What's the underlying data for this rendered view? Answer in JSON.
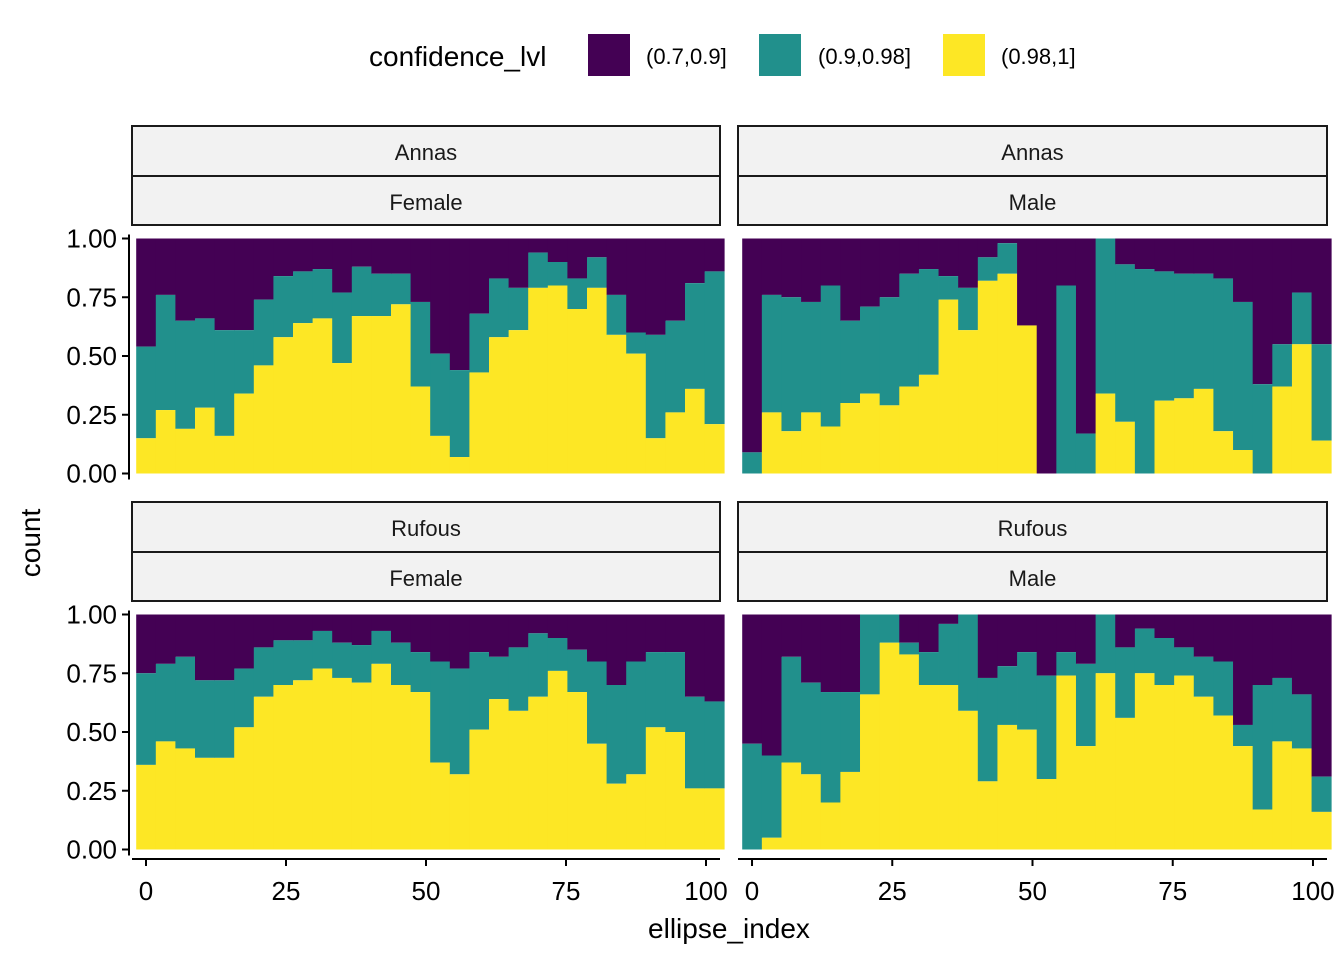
{
  "chart_data": {
    "type": "bar",
    "stacked": "fill",
    "xlabel": "ellipse_index",
    "ylabel": "count",
    "ylim": [
      0,
      1
    ],
    "xlim": [
      -2.5,
      102.5
    ],
    "bin_width": 3.5,
    "y_ticks": [
      "0.00",
      "0.25",
      "0.50",
      "0.75",
      "1.00"
    ],
    "x_ticks": [
      "0",
      "25",
      "50",
      "75",
      "100"
    ],
    "grid": false,
    "legend": {
      "position": "top",
      "title": "confidence_lvl",
      "entries": [
        {
          "label": "(0.7,0.9]",
          "color": "#440154"
        },
        {
          "label": "(0.9,0.98]",
          "color": "#21908C"
        },
        {
          "label": "(0.98,1]",
          "color": "#FDE725"
        }
      ]
    },
    "bin_centers": [
      0,
      3.5,
      7,
      10.5,
      14,
      17.5,
      21,
      24.5,
      28,
      31.5,
      35,
      38.5,
      42,
      45.5,
      49,
      52.5,
      56,
      59.5,
      63,
      66.5,
      70,
      73.5,
      77,
      80.5,
      84,
      87.5,
      91,
      94.5,
      98,
      101.5
    ],
    "panels": [
      {
        "strip_top": "Annas",
        "strip_bottom": "Female",
        "bins": [
          {
            "x": 0,
            "y": 0.15,
            "t": 0.54
          },
          {
            "x": 3.5,
            "y": 0.27,
            "t": 0.76
          },
          {
            "x": 7,
            "y": 0.19,
            "t": 0.65
          },
          {
            "x": 10.5,
            "y": 0.28,
            "t": 0.66
          },
          {
            "x": 14,
            "y": 0.16,
            "t": 0.61
          },
          {
            "x": 17.5,
            "y": 0.34,
            "t": 0.61
          },
          {
            "x": 21,
            "y": 0.46,
            "t": 0.74
          },
          {
            "x": 24.5,
            "y": 0.58,
            "t": 0.84
          },
          {
            "x": 28,
            "y": 0.64,
            "t": 0.86
          },
          {
            "x": 31.5,
            "y": 0.66,
            "t": 0.87
          },
          {
            "x": 35,
            "y": 0.47,
            "t": 0.77
          },
          {
            "x": 38.5,
            "y": 0.67,
            "t": 0.88
          },
          {
            "x": 42,
            "y": 0.67,
            "t": 0.85
          },
          {
            "x": 45.5,
            "y": 0.72,
            "t": 0.85
          },
          {
            "x": 49,
            "y": 0.37,
            "t": 0.73
          },
          {
            "x": 52.5,
            "y": 0.16,
            "t": 0.51
          },
          {
            "x": 56,
            "y": 0.07,
            "t": 0.44
          },
          {
            "x": 59.5,
            "y": 0.43,
            "t": 0.68
          },
          {
            "x": 63,
            "y": 0.58,
            "t": 0.83
          },
          {
            "x": 66.5,
            "y": 0.61,
            "t": 0.79
          },
          {
            "x": 70,
            "y": 0.79,
            "t": 0.94
          },
          {
            "x": 73.5,
            "y": 0.8,
            "t": 0.9
          },
          {
            "x": 77,
            "y": 0.7,
            "t": 0.83
          },
          {
            "x": 80.5,
            "y": 0.79,
            "t": 0.92
          },
          {
            "x": 84,
            "y": 0.59,
            "t": 0.76
          },
          {
            "x": 87.5,
            "y": 0.51,
            "t": 0.6
          },
          {
            "x": 91,
            "y": 0.15,
            "t": 0.59
          },
          {
            "x": 94.5,
            "y": 0.26,
            "t": 0.65
          },
          {
            "x": 98,
            "y": 0.36,
            "t": 0.81
          },
          {
            "x": 101.5,
            "y": 0.21,
            "t": 0.86
          }
        ]
      },
      {
        "strip_top": "Annas",
        "strip_bottom": "Male",
        "bins": [
          {
            "x": 0,
            "y": 0.0,
            "t": 0.09
          },
          {
            "x": 3.5,
            "y": 0.26,
            "t": 0.76
          },
          {
            "x": 7,
            "y": 0.18,
            "t": 0.75
          },
          {
            "x": 10.5,
            "y": 0.26,
            "t": 0.73
          },
          {
            "x": 14,
            "y": 0.2,
            "t": 0.8
          },
          {
            "x": 17.5,
            "y": 0.3,
            "t": 0.65
          },
          {
            "x": 21,
            "y": 0.34,
            "t": 0.71
          },
          {
            "x": 24.5,
            "y": 0.29,
            "t": 0.75
          },
          {
            "x": 28,
            "y": 0.37,
            "t": 0.85
          },
          {
            "x": 31.5,
            "y": 0.42,
            "t": 0.87
          },
          {
            "x": 35,
            "y": 0.74,
            "t": 0.84
          },
          {
            "x": 38.5,
            "y": 0.61,
            "t": 0.79
          },
          {
            "x": 42,
            "y": 0.82,
            "t": 0.92
          },
          {
            "x": 45.5,
            "y": 0.85,
            "t": 0.98
          },
          {
            "x": 49,
            "y": 0.63,
            "t": 0.63
          },
          {
            "x": 52.5,
            "y": 0.0,
            "t": 0.0
          },
          {
            "x": 56,
            "y": 0.0,
            "t": 0.8
          },
          {
            "x": 59.5,
            "y": 0.0,
            "t": 0.17
          },
          {
            "x": 63,
            "y": 0.34,
            "t": 1.0
          },
          {
            "x": 66.5,
            "y": 0.22,
            "t": 0.89
          },
          {
            "x": 70,
            "y": 0.0,
            "t": 0.87
          },
          {
            "x": 73.5,
            "y": 0.31,
            "t": 0.86
          },
          {
            "x": 77,
            "y": 0.32,
            "t": 0.85
          },
          {
            "x": 80.5,
            "y": 0.36,
            "t": 0.85
          },
          {
            "x": 84,
            "y": 0.18,
            "t": 0.83
          },
          {
            "x": 87.5,
            "y": 0.1,
            "t": 0.73
          },
          {
            "x": 91,
            "y": 0.0,
            "t": 0.38
          },
          {
            "x": 94.5,
            "y": 0.37,
            "t": 0.55
          },
          {
            "x": 98,
            "y": 0.55,
            "t": 0.77
          },
          {
            "x": 101.5,
            "y": 0.14,
            "t": 0.55
          }
        ]
      },
      {
        "strip_top": "Rufous",
        "strip_bottom": "Female",
        "bins": [
          {
            "x": 0,
            "y": 0.36,
            "t": 0.75
          },
          {
            "x": 3.5,
            "y": 0.46,
            "t": 0.79
          },
          {
            "x": 7,
            "y": 0.43,
            "t": 0.82
          },
          {
            "x": 10.5,
            "y": 0.39,
            "t": 0.72
          },
          {
            "x": 14,
            "y": 0.39,
            "t": 0.72
          },
          {
            "x": 17.5,
            "y": 0.52,
            "t": 0.77
          },
          {
            "x": 21,
            "y": 0.65,
            "t": 0.86
          },
          {
            "x": 24.5,
            "y": 0.7,
            "t": 0.89
          },
          {
            "x": 28,
            "y": 0.72,
            "t": 0.89
          },
          {
            "x": 31.5,
            "y": 0.77,
            "t": 0.93
          },
          {
            "x": 35,
            "y": 0.73,
            "t": 0.88
          },
          {
            "x": 38.5,
            "y": 0.71,
            "t": 0.87
          },
          {
            "x": 42,
            "y": 0.79,
            "t": 0.93
          },
          {
            "x": 45.5,
            "y": 0.7,
            "t": 0.88
          },
          {
            "x": 49,
            "y": 0.67,
            "t": 0.84
          },
          {
            "x": 52.5,
            "y": 0.37,
            "t": 0.8
          },
          {
            "x": 56,
            "y": 0.32,
            "t": 0.77
          },
          {
            "x": 59.5,
            "y": 0.51,
            "t": 0.84
          },
          {
            "x": 63,
            "y": 0.64,
            "t": 0.82
          },
          {
            "x": 66.5,
            "y": 0.59,
            "t": 0.86
          },
          {
            "x": 70,
            "y": 0.65,
            "t": 0.92
          },
          {
            "x": 73.5,
            "y": 0.76,
            "t": 0.9
          },
          {
            "x": 77,
            "y": 0.67,
            "t": 0.85
          },
          {
            "x": 80.5,
            "y": 0.45,
            "t": 0.8
          },
          {
            "x": 84,
            "y": 0.28,
            "t": 0.7
          },
          {
            "x": 87.5,
            "y": 0.32,
            "t": 0.8
          },
          {
            "x": 91,
            "y": 0.52,
            "t": 0.84
          },
          {
            "x": 94.5,
            "y": 0.5,
            "t": 0.84
          },
          {
            "x": 98,
            "y": 0.26,
            "t": 0.65
          },
          {
            "x": 101.5,
            "y": 0.26,
            "t": 0.63
          }
        ]
      },
      {
        "strip_top": "Rufous",
        "strip_bottom": "Male",
        "bins": [
          {
            "x": 0,
            "y": 0.0,
            "t": 0.45
          },
          {
            "x": 3.5,
            "y": 0.05,
            "t": 0.4
          },
          {
            "x": 7,
            "y": 0.37,
            "t": 0.82
          },
          {
            "x": 10.5,
            "y": 0.32,
            "t": 0.71
          },
          {
            "x": 14,
            "y": 0.2,
            "t": 0.67
          },
          {
            "x": 17.5,
            "y": 0.33,
            "t": 0.67
          },
          {
            "x": 21,
            "y": 0.66,
            "t": 1.0
          },
          {
            "x": 24.5,
            "y": 0.88,
            "t": 1.0
          },
          {
            "x": 28,
            "y": 0.83,
            "t": 0.88
          },
          {
            "x": 31.5,
            "y": 0.7,
            "t": 0.84
          },
          {
            "x": 35,
            "y": 0.7,
            "t": 0.96
          },
          {
            "x": 38.5,
            "y": 0.59,
            "t": 1.0
          },
          {
            "x": 42,
            "y": 0.29,
            "t": 0.73
          },
          {
            "x": 45.5,
            "y": 0.53,
            "t": 0.78
          },
          {
            "x": 49,
            "y": 0.51,
            "t": 0.84
          },
          {
            "x": 52.5,
            "y": 0.3,
            "t": 0.74
          },
          {
            "x": 56,
            "y": 0.74,
            "t": 0.84
          },
          {
            "x": 59.5,
            "y": 0.44,
            "t": 0.79
          },
          {
            "x": 63,
            "y": 0.75,
            "t": 1.0
          },
          {
            "x": 66.5,
            "y": 0.56,
            "t": 0.86
          },
          {
            "x": 70,
            "y": 0.75,
            "t": 0.94
          },
          {
            "x": 73.5,
            "y": 0.7,
            "t": 0.9
          },
          {
            "x": 77,
            "y": 0.74,
            "t": 0.86
          },
          {
            "x": 80.5,
            "y": 0.65,
            "t": 0.82
          },
          {
            "x": 84,
            "y": 0.57,
            "t": 0.8
          },
          {
            "x": 87.5,
            "y": 0.44,
            "t": 0.53
          },
          {
            "x": 91,
            "y": 0.17,
            "t": 0.7
          },
          {
            "x": 94.5,
            "y": 0.46,
            "t": 0.73
          },
          {
            "x": 98,
            "y": 0.43,
            "t": 0.66
          },
          {
            "x": 101.5,
            "y": 0.16,
            "t": 0.31
          }
        ]
      }
    ]
  }
}
